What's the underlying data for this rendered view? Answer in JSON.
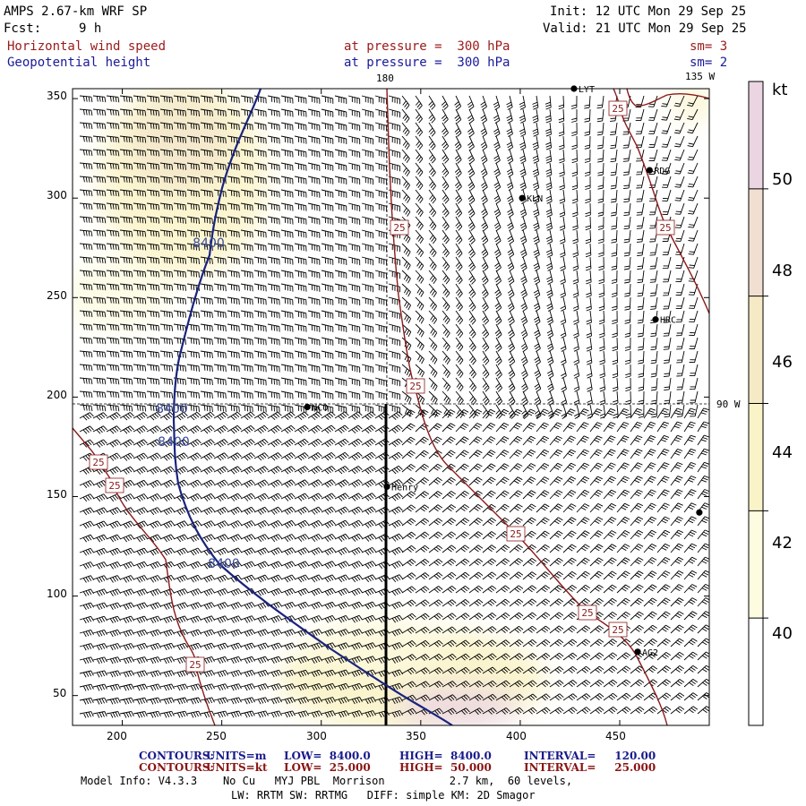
{
  "header": {
    "model": "AMPS 2.67-km WRF SP",
    "fcst_label": "Fcst:",
    "fcst_value": "9 h",
    "init": "Init: 12 UTC Mon 29 Sep 25",
    "valid": "Valid: 21 UTC Mon 29 Sep 25",
    "field1": "Horizontal wind speed",
    "field1_level": "at pressure =  300 hPa",
    "field1_sm": "sm= 3",
    "field2": "Geopotential height",
    "field2_level": "at pressure =  300 hPa",
    "field2_sm": "sm= 2"
  },
  "map": {
    "top_meridian_label": "180",
    "top_right_meridian_label": "135 W",
    "right_meridian_label": "90 W",
    "x_ticks": [
      "200",
      "250",
      "300",
      "350",
      "400",
      "450"
    ],
    "y_ticks": [
      "350",
      "300",
      "250",
      "200",
      "150",
      "100",
      "50"
    ],
    "stations": [
      {
        "code": "LYT",
        "x": 427,
        "y": 355
      },
      {
        "code": "RDG",
        "x": 465,
        "y": 314
      },
      {
        "code": "KLN",
        "x": 401,
        "y": 300
      },
      {
        "code": "HRC",
        "x": 468,
        "y": 239
      },
      {
        "code": "NCO",
        "x": 293,
        "y": 195
      },
      {
        "code": "Henry",
        "x": 333,
        "y": 155
      },
      {
        "code": "AG2",
        "x": 459,
        "y": 72
      },
      {
        "code": "",
        "x": 490,
        "y": 142
      }
    ],
    "height_contour_value": 8400,
    "height_contour_labels": [
      "8400",
      "8400",
      "8400",
      "8400"
    ],
    "wind_contour_value": 25,
    "wind_contour_labels": [
      "25",
      "25",
      "25",
      "25",
      "25",
      "25",
      "25",
      "25",
      "25",
      "25"
    ]
  },
  "colorbar": {
    "units": "kt",
    "ticks": [
      "50",
      "48",
      "46",
      "44",
      "42",
      "40"
    ],
    "colors": [
      "#ffffff",
      "#fdfbe0",
      "#faf3c8",
      "#f6e9c6",
      "#f1e0d2",
      "#ebd5e2"
    ]
  },
  "footer": {
    "c1_label": "CONTOURS:",
    "c1_units": "UNITS=m",
    "c1_low": "LOW=  8400.0",
    "c1_high": "HIGH=  8400.0",
    "c1_int": "INTERVAL=     120.00",
    "c2_label": "CONTOURS:",
    "c2_units": "UNITS=kt",
    "c2_low": "LOW=  25.000",
    "c2_high": "HIGH=  50.000",
    "c2_int": "INTERVAL=     25.000",
    "info1": "Model Info: V4.3.3    No Cu   MYJ PBL  Morrison          2.7 km,  60 levels,",
    "info2": "LW: RRTM SW: RRTMG   DIFF: simple KM: 2D Smagor"
  }
}
